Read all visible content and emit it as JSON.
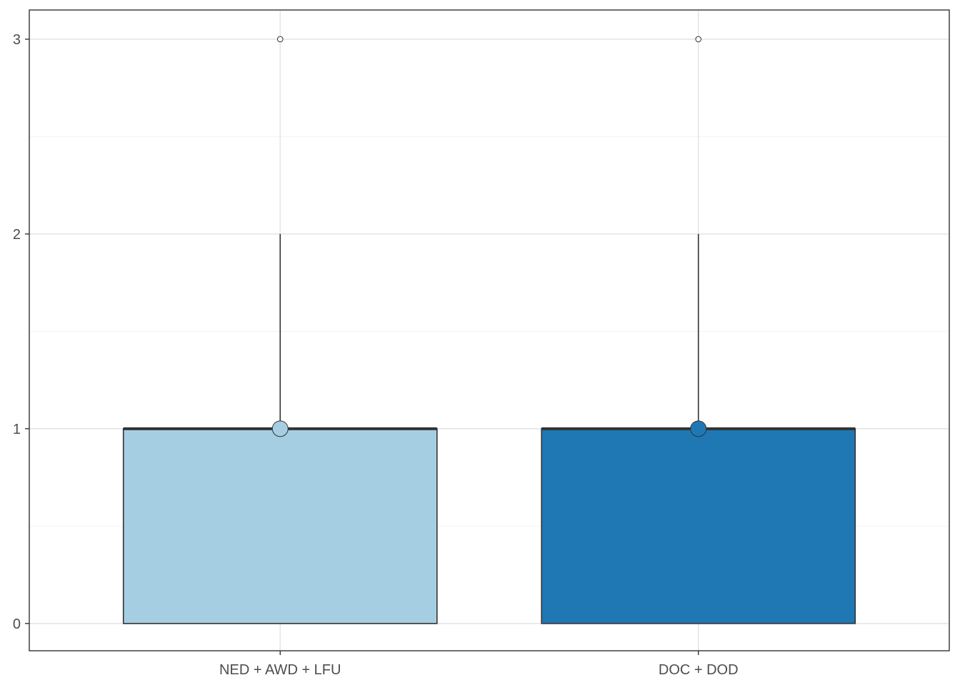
{
  "chart_data": {
    "type": "box",
    "title": "",
    "xlabel": "",
    "ylabel": "",
    "ylim": [
      -0.14,
      3.15
    ],
    "y_ticks": [
      0,
      1,
      2,
      3
    ],
    "y_tick_labels": [
      "0",
      "1",
      "2",
      "3"
    ],
    "y_minor_ticks": [
      0.5,
      1.5,
      2.5
    ],
    "grid": true,
    "legend": "none",
    "categories": [
      "NED + AWD + LFU",
      "DOC + DOD"
    ],
    "series": [
      {
        "category": "NED + AWD + LFU",
        "min": 0,
        "q1": 0,
        "median": 1,
        "q3": 1,
        "whisker_high": 2,
        "mean": 1,
        "outliers": [
          3
        ],
        "color": "#a6cee3"
      },
      {
        "category": "DOC + DOD",
        "min": 0,
        "q1": 0,
        "median": 1,
        "q3": 1,
        "whisker_high": 2,
        "mean": 1,
        "outliers": [
          3
        ],
        "color": "#1f78b4"
      }
    ]
  }
}
